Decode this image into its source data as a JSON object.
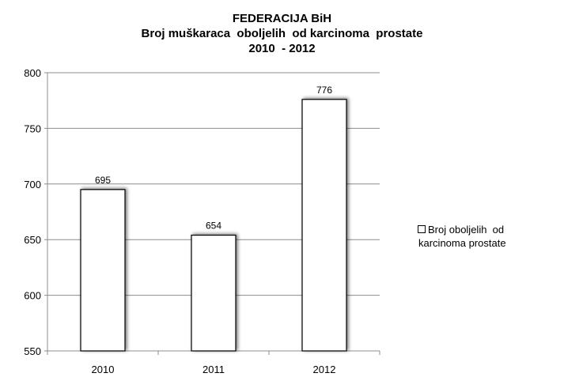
{
  "chart_data": {
    "type": "bar",
    "title_lines": [
      "FEDERACIJA BiH",
      "Broj muškaraca  oboljelih  od karcinoma  prostate",
      "2010  - 2012"
    ],
    "categories": [
      "2010",
      "2011",
      "2012"
    ],
    "series": [
      {
        "name": "Broj oboljelih  od karcinoma prostate",
        "values": [
          695,
          654,
          776
        ],
        "color": "#ffffff"
      }
    ],
    "ylim": [
      550,
      800
    ],
    "yticks": [
      550,
      600,
      650,
      700,
      750,
      800
    ],
    "grid": true,
    "legend": "right"
  },
  "legend": {
    "line1": "Broj oboljelih  od",
    "line2": "karcinoma prostate"
  }
}
